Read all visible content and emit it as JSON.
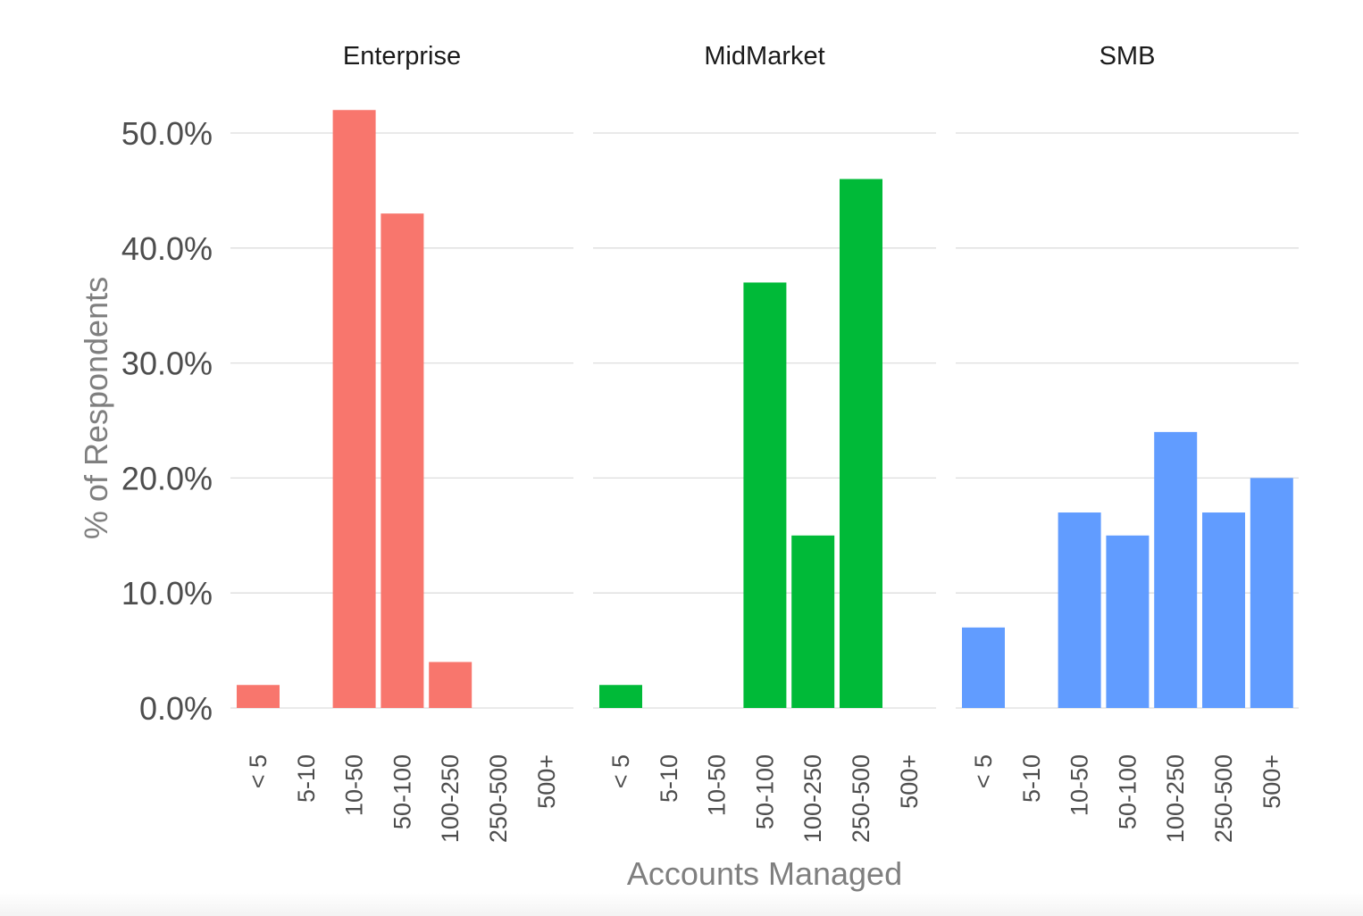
{
  "chart_data": {
    "type": "bar",
    "xlabel": "Accounts Managed",
    "ylabel": "% of Respondents",
    "ylim": [
      0,
      0.52
    ],
    "y_ticks": [
      0,
      0.1,
      0.2,
      0.3,
      0.4,
      0.5
    ],
    "y_tick_labels": [
      "0.0%",
      "10.0%",
      "20.0%",
      "30.0%",
      "40.0%",
      "50.0%"
    ],
    "grid": true,
    "categories": [
      "< 5",
      "5-10",
      "10-50",
      "50-100",
      "100-250",
      "250-500",
      "500+"
    ],
    "facets": [
      {
        "name": "Enterprise",
        "color": "#F8766D",
        "values": [
          0.02,
          0,
          0.52,
          0.43,
          0.04,
          0,
          0
        ]
      },
      {
        "name": "MidMarket",
        "color": "#00BA38",
        "values": [
          0.02,
          0,
          0,
          0.37,
          0.15,
          0.46,
          0
        ]
      },
      {
        "name": "SMB",
        "color": "#619CFF",
        "values": [
          0.07,
          0,
          0.17,
          0.15,
          0.24,
          0.17,
          0.2
        ]
      }
    ]
  }
}
